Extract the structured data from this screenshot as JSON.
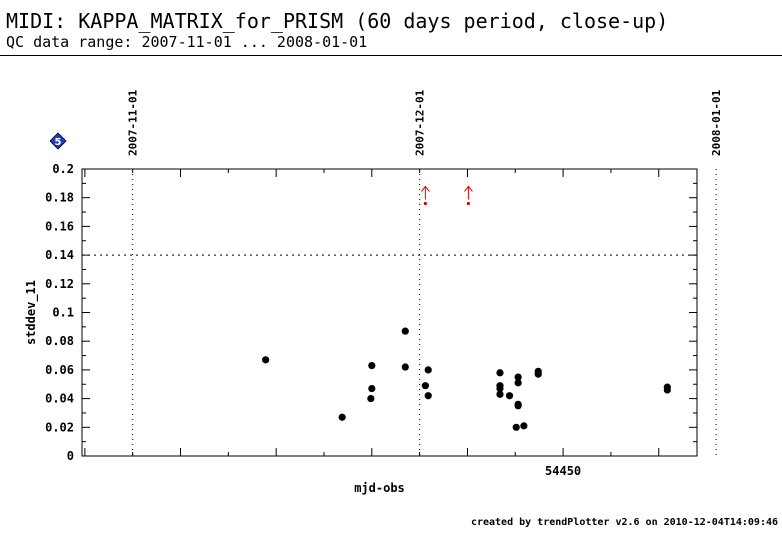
{
  "header": {
    "title": "MIDI: KAPPA_MATRIX_for_PRISM (60 days period, close-up)",
    "subtitle": "QC data range: 2007-11-01 ... 2008-01-01"
  },
  "footer": {
    "credit": "created by trendPlotter v2.6 on 2010-12-04T14:09:46"
  },
  "badge": {
    "label": "5",
    "color": "#1f3fbf"
  },
  "chart_data": {
    "type": "scatter",
    "title": "",
    "xlabel": "mjd-obs",
    "ylabel": "stddev_11",
    "xlim": [
      54399.7,
      54464.0
    ],
    "ylim": [
      0,
      0.2
    ],
    "x_ticks": [
      54450
    ],
    "y_ticks": [
      "0",
      "0.02",
      "0.04",
      "0.06",
      "0.08",
      "0.1",
      "0.12",
      "0.14",
      "0.16",
      "0.18",
      "0.2"
    ],
    "date_markers": [
      {
        "label": "2007-11-01",
        "x": 54405
      },
      {
        "label": "2007-12-01",
        "x": 54435
      },
      {
        "label": "2008-01-01",
        "x": 54466
      }
    ],
    "threshold": {
      "y": 0.14,
      "style": "dotted"
    },
    "points": [
      {
        "x": 54418.9,
        "y": 0.067
      },
      {
        "x": 54426.9,
        "y": 0.027
      },
      {
        "x": 54430.0,
        "y": 0.063
      },
      {
        "x": 54430.0,
        "y": 0.047
      },
      {
        "x": 54429.9,
        "y": 0.04
      },
      {
        "x": 54433.5,
        "y": 0.087
      },
      {
        "x": 54433.5,
        "y": 0.062
      },
      {
        "x": 54435.6,
        "y": 0.049
      },
      {
        "x": 54435.9,
        "y": 0.06
      },
      {
        "x": 54435.9,
        "y": 0.042
      },
      {
        "x": 54443.4,
        "y": 0.058
      },
      {
        "x": 54443.4,
        "y": 0.049
      },
      {
        "x": 54443.4,
        "y": 0.047
      },
      {
        "x": 54443.4,
        "y": 0.043
      },
      {
        "x": 54444.4,
        "y": 0.042
      },
      {
        "x": 54445.3,
        "y": 0.055
      },
      {
        "x": 54445.3,
        "y": 0.051
      },
      {
        "x": 54445.3,
        "y": 0.036
      },
      {
        "x": 54445.3,
        "y": 0.035
      },
      {
        "x": 54445.1,
        "y": 0.02
      },
      {
        "x": 54445.9,
        "y": 0.021
      },
      {
        "x": 54447.4,
        "y": 0.059
      },
      {
        "x": 54447.4,
        "y": 0.057
      },
      {
        "x": 54460.9,
        "y": 0.048
      },
      {
        "x": 54460.9,
        "y": 0.046
      }
    ],
    "outliers": [
      {
        "x": 54435.6,
        "y": 0.176,
        "color": "#dd0000"
      },
      {
        "x": 54440.1,
        "y": 0.176,
        "color": "#dd0000"
      }
    ],
    "grid": false,
    "legend": "none"
  }
}
